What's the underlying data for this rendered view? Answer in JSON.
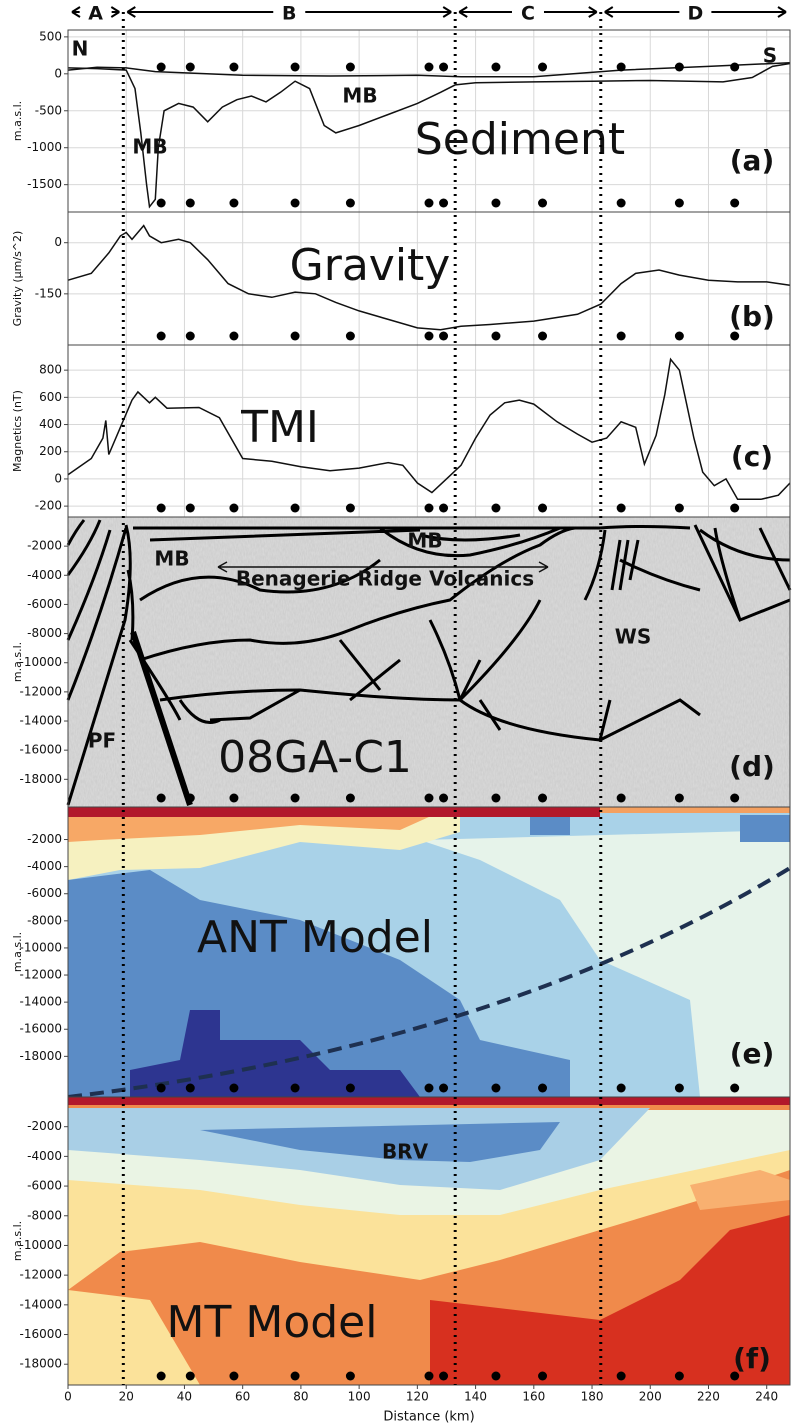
{
  "chart_data": [
    {
      "type": "line",
      "ylabel": "m.a.s.l.",
      "ylim": [
        -1870,
        593
      ],
      "yticks": [
        500,
        0,
        -500,
        -1000,
        -1500
      ],
      "regions": [
        "A",
        "B",
        "C",
        "D"
      ],
      "boundaries": [
        19,
        133,
        183
      ],
      "stations": [
        32,
        42,
        57,
        78,
        97,
        124,
        129,
        147,
        163,
        190,
        210,
        229
      ],
      "annotations": [
        "N",
        "S",
        "MB",
        "MB",
        "Sediment",
        "(a)"
      ],
      "series": [
        {
          "color": "#111111",
          "x": [
            0,
            10,
            20,
            30,
            60,
            90,
            120,
            135,
            160,
            190,
            220,
            248
          ],
          "values": [
            50,
            90,
            80,
            30,
            -20,
            -30,
            -20,
            -40,
            -40,
            50,
            100,
            150
          ]
        },
        {
          "color": "#111111",
          "x": [
            0,
            10,
            20,
            23,
            25,
            27,
            28,
            30,
            31,
            33,
            38,
            43,
            48,
            53,
            58,
            63,
            68,
            73,
            78,
            83,
            88,
            92,
            100,
            110,
            120,
            128,
            133,
            140,
            160,
            180,
            200,
            225,
            235,
            242,
            248
          ],
          "values": [
            80,
            70,
            50,
            -200,
            -800,
            -1500,
            -1800,
            -1700,
            -1000,
            -500,
            -400,
            -450,
            -650,
            -450,
            -350,
            -300,
            -380,
            -250,
            -100,
            -200,
            -700,
            -800,
            -700,
            -550,
            -400,
            -250,
            -150,
            -120,
            -110,
            -100,
            -90,
            -110,
            -50,
            100,
            140
          ]
        }
      ]
    },
    {
      "type": "line",
      "ylabel": "Gravity (µm/s^2)",
      "ylim": [
        -300,
        90
      ],
      "yticks": [
        0,
        -150
      ],
      "annotations": [
        "Gravity",
        "(b)"
      ],
      "series": [
        {
          "color": "#111111",
          "x": [
            0,
            8,
            14,
            18,
            20,
            22,
            26,
            28,
            32,
            38,
            42,
            48,
            55,
            62,
            70,
            78,
            85,
            92,
            100,
            110,
            120,
            128,
            135,
            145,
            160,
            175,
            183,
            190,
            195,
            203,
            210,
            220,
            230,
            240,
            248
          ],
          "values": [
            -110,
            -90,
            -30,
            20,
            30,
            10,
            50,
            20,
            0,
            10,
            0,
            -50,
            -120,
            -150,
            -160,
            -145,
            -150,
            -175,
            -200,
            -225,
            -250,
            -255,
            -245,
            -240,
            -230,
            -210,
            -180,
            -120,
            -90,
            -80,
            -95,
            -110,
            -115,
            -115,
            -125
          ]
        }
      ]
    },
    {
      "type": "line",
      "ylabel": "Magnetics (nT)",
      "ylim": [
        -280,
        985
      ],
      "yticks": [
        800,
        600,
        400,
        200,
        0,
        -200
      ],
      "annotations": [
        "TMI",
        "(c)"
      ],
      "series": [
        {
          "color": "#111111",
          "x": [
            0,
            8,
            12,
            13,
            14,
            18,
            22,
            24,
            28,
            30,
            34,
            45,
            52,
            60,
            70,
            80,
            90,
            100,
            110,
            115,
            120,
            125,
            130,
            135,
            140,
            145,
            150,
            155,
            160,
            168,
            175,
            180,
            185,
            190,
            195,
            198,
            202,
            205,
            207,
            210,
            212,
            215,
            218,
            222,
            226,
            230,
            238,
            244,
            248
          ],
          "values": [
            30,
            150,
            300,
            430,
            180,
            380,
            580,
            640,
            560,
            600,
            520,
            525,
            450,
            150,
            130,
            90,
            60,
            80,
            120,
            100,
            -30,
            -100,
            0,
            100,
            300,
            470,
            560,
            580,
            550,
            420,
            330,
            270,
            300,
            420,
            380,
            110,
            320,
            620,
            880,
            800,
            600,
            300,
            50,
            -50,
            0,
            -150,
            -150,
            -120,
            -30
          ]
        }
      ]
    },
    {
      "type": "image",
      "ylabel": "m.a.s.l.",
      "ylim": [
        -19900,
        0
      ],
      "yticks": [
        -2000,
        -4000,
        -6000,
        -8000,
        -10000,
        -12000,
        -14000,
        -16000,
        -18000
      ],
      "annotations": [
        "MB",
        "MB",
        "Benagerie Ridge Volcanics",
        "WS",
        "PF",
        "08GA-C1",
        "(d)"
      ]
    },
    {
      "type": "heatmap",
      "ylabel": "m.a.s.l.",
      "ylim": [
        -21000,
        400
      ],
      "yticks": [
        -2000,
        -4000,
        -6000,
        -8000,
        -10000,
        -12000,
        -14000,
        -16000,
        -18000
      ],
      "annotations": [
        "ANT Model",
        "(e)"
      ]
    },
    {
      "type": "heatmap",
      "ylabel": "m.a.s.l.",
      "ylim": [
        -19400,
        0
      ],
      "yticks": [
        -2000,
        -4000,
        -6000,
        -8000,
        -10000,
        -12000,
        -14000,
        -16000,
        -18000
      ],
      "annotations": [
        "BRV",
        "MT Model",
        "(f)"
      ],
      "xlabel": "Distance (km)",
      "xlim": [
        0,
        248
      ],
      "xticks": [
        0,
        20,
        40,
        60,
        80,
        100,
        120,
        140,
        160,
        180,
        200,
        220,
        240
      ]
    }
  ]
}
